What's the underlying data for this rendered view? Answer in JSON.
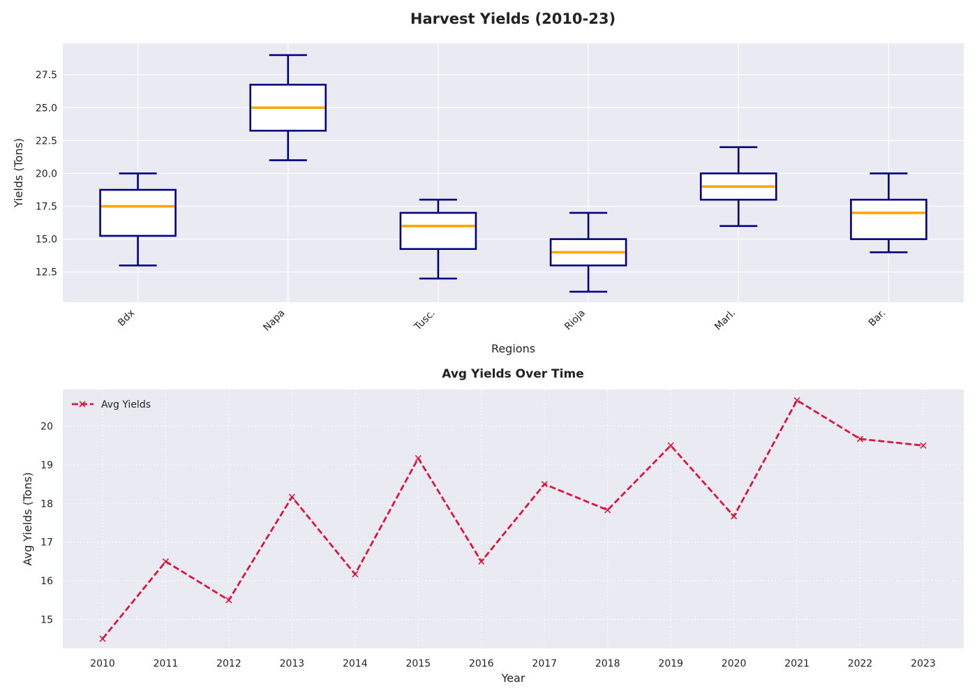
{
  "title": "Harvest Yields (2010-23)",
  "colors": {
    "background": "#eaeaf2",
    "grid": "#ffffff",
    "box_edge": "#000080",
    "box_fill": "#ffffff",
    "median": "#ffa500",
    "line": "#dc143c"
  },
  "chart_data": [
    {
      "type": "box",
      "title": "",
      "xlabel": "Regions",
      "ylabel": "Yields (Tons)",
      "ylim": [
        10.2,
        29.9
      ],
      "yticks": [
        12.5,
        15.0,
        17.5,
        20.0,
        22.5,
        25.0,
        27.5
      ],
      "ytick_labels": [
        "12.5",
        "15.0",
        "17.5",
        "20.0",
        "22.5",
        "25.0",
        "27.5"
      ],
      "grid": true,
      "categories": [
        "Bdx",
        "Napa",
        "Tusc.",
        "Rioja",
        "Marl.",
        "Bar."
      ],
      "boxes": [
        {
          "whisker_low": 13,
          "q1": 15.25,
          "median": 17.5,
          "q3": 18.75,
          "whisker_high": 20
        },
        {
          "whisker_low": 21,
          "q1": 23.25,
          "median": 25,
          "q3": 26.75,
          "whisker_high": 29
        },
        {
          "whisker_low": 12,
          "q1": 14.25,
          "median": 16,
          "q3": 17,
          "whisker_high": 18
        },
        {
          "whisker_low": 11,
          "q1": 13,
          "median": 14,
          "q3": 15,
          "whisker_high": 17
        },
        {
          "whisker_low": 16,
          "q1": 18,
          "median": 19,
          "q3": 20,
          "whisker_high": 22
        },
        {
          "whisker_low": 14,
          "q1": 15,
          "median": 17,
          "q3": 18,
          "whisker_high": 20
        }
      ]
    },
    {
      "type": "line",
      "title": "Avg Yields Over Time",
      "xlabel": "Year",
      "ylabel": "Avg Yields (Tons)",
      "ylim": [
        14.25,
        20.95
      ],
      "yticks": [
        15,
        16,
        17,
        18,
        19,
        20
      ],
      "ytick_labels": [
        "15",
        "16",
        "17",
        "18",
        "19",
        "20"
      ],
      "grid": true,
      "legend": "top-left",
      "x": [
        "2010",
        "2011",
        "2012",
        "2013",
        "2014",
        "2015",
        "2016",
        "2017",
        "2018",
        "2019",
        "2020",
        "2021",
        "2022",
        "2023"
      ],
      "series": [
        {
          "name": "Avg Yields",
          "values": [
            14.5,
            16.5,
            15.5,
            18.17,
            16.17,
            19.17,
            16.5,
            18.5,
            17.83,
            19.5,
            17.67,
            20.67,
            19.67,
            19.5
          ]
        }
      ]
    }
  ]
}
